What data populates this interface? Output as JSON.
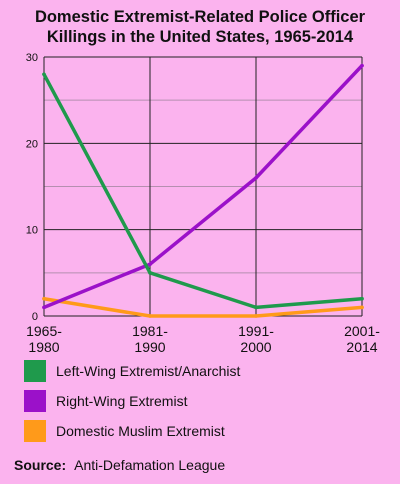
{
  "title_lines": [
    "Domestic Extremist-Related Police Officer",
    "Killings in the United States, 1965-2014"
  ],
  "colors": {
    "background": "#fbb3ee",
    "grid": "#222222",
    "minor_grid": "#b58fb0"
  },
  "legend": [
    {
      "label": "Left-Wing Extremist/Anarchist",
      "color": "#1f9a4c"
    },
    {
      "label": "Right-Wing Extremist",
      "color": "#9b11c9"
    },
    {
      "label": "Domestic Muslim Extremist",
      "color": "#ff9a1a"
    }
  ],
  "source": {
    "label": "Source:",
    "text": "Anti-Defamation League"
  },
  "chart_data": {
    "type": "line",
    "categories": [
      [
        "1965-",
        "1980"
      ],
      [
        "1981-",
        "1990"
      ],
      [
        "1991-",
        "2000"
      ],
      [
        "2001-",
        "2014"
      ]
    ],
    "ylim": [
      0,
      30
    ],
    "yticks": [
      0,
      10,
      20,
      30
    ],
    "minor_yticks": [
      5,
      15,
      25
    ],
    "grid": true,
    "series": [
      {
        "name": "Left-Wing Extremist/Anarchist",
        "color": "#1f9a4c",
        "values": [
          28,
          5,
          1,
          2
        ]
      },
      {
        "name": "Right-Wing Extremist",
        "color": "#9b11c9",
        "values": [
          1,
          6,
          16,
          29
        ]
      },
      {
        "name": "Domestic Muslim Extremist",
        "color": "#ff9a1a",
        "values": [
          2,
          0,
          0,
          1
        ]
      }
    ]
  }
}
